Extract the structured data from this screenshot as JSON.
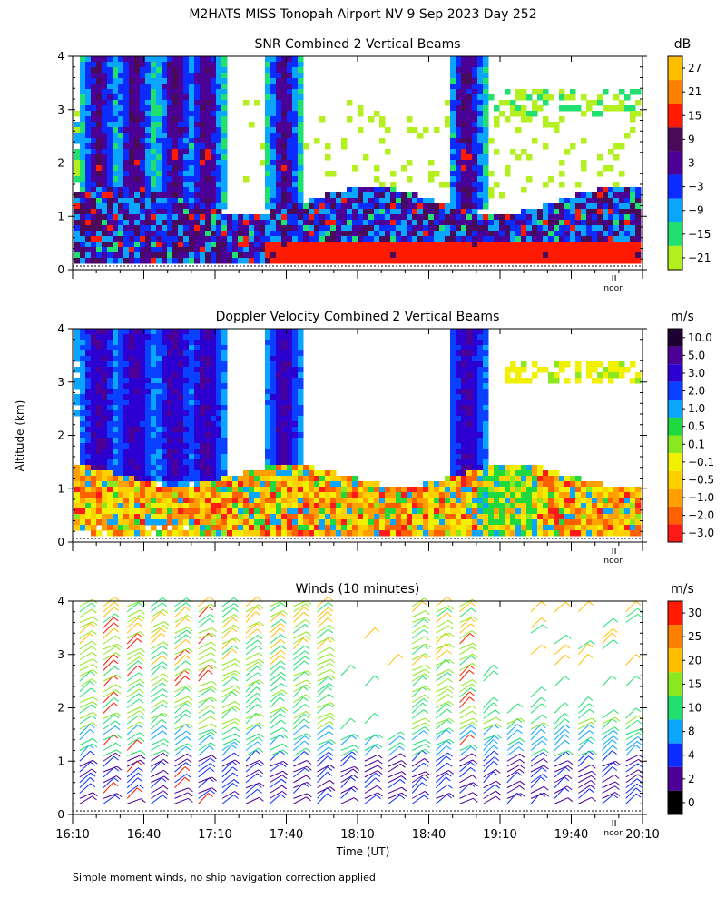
{
  "figure": {
    "title": "M2HATS MISS Tonopah Airport NV   9 Sep 2023 Day 252",
    "ylabel": "Altitude (km)",
    "xlabel": "Time (UT)",
    "footnote": "Simple moment winds, no ship navigation correction applied",
    "noon_label": "noon"
  },
  "chart_data": [
    {
      "type": "heatmap",
      "title": "SNR Combined 2 Vertical Beams",
      "units": "dB",
      "ylabel": "Altitude (km)",
      "y_range": [
        0,
        4
      ],
      "y_ticks": [
        0,
        1,
        2,
        3,
        4
      ],
      "x_range": [
        "16:10",
        "20:10"
      ],
      "colorbar": {
        "labels": [
          "27",
          "21",
          "15",
          "9",
          "3",
          "−3",
          "−9",
          "−15",
          "−21"
        ],
        "colors": [
          "#ffbf00",
          "#ff7f00",
          "#ff1a00",
          "#4a0a5a",
          "#4b0096",
          "#0a2cff",
          "#0aa5ff",
          "#20e070",
          "#b4f020"
        ]
      }
    },
    {
      "type": "heatmap",
      "title": "Doppler Velocity Combined 2 Vertical Beams",
      "units": "m/s",
      "ylabel": "Altitude (km)",
      "y_range": [
        0,
        4
      ],
      "y_ticks": [
        0,
        1,
        2,
        3,
        4
      ],
      "x_range": [
        "16:10",
        "20:10"
      ],
      "colorbar": {
        "labels": [
          "10.0",
          "5.0",
          "3.0",
          "2.0",
          "1.0",
          "0.5",
          "0.1",
          "−0.1",
          "−0.5",
          "−1.0",
          "−2.0",
          "−3.0"
        ],
        "colors": [
          "#1e0032",
          "#4b0096",
          "#2b00d0",
          "#0a40ff",
          "#0aa5ff",
          "#20d840",
          "#8ce81e",
          "#f0f000",
          "#ffd000",
          "#ffa000",
          "#ff6000",
          "#ff1a1a"
        ]
      }
    },
    {
      "type": "scatter",
      "title": "Winds (10 minutes)",
      "units": "m/s",
      "ylabel": "Altitude (km)",
      "y_range": [
        0,
        4
      ],
      "y_ticks": [
        0,
        1,
        2,
        3,
        4
      ],
      "x_ticks": [
        "16:10",
        "16:40",
        "17:10",
        "17:40",
        "18:10",
        "18:40",
        "19:10",
        "19:40",
        "20:10"
      ],
      "x_range": [
        "16:10",
        "20:10"
      ],
      "colorbar": {
        "labels": [
          "30",
          "25",
          "20",
          "15",
          "10",
          "8",
          "4",
          "2",
          "0"
        ],
        "colors": [
          "#ff1a00",
          "#ff7f00",
          "#ffbf00",
          "#8ce81e",
          "#20e070",
          "#0aa5ff",
          "#0a2cff",
          "#4b0096",
          "#000000"
        ]
      }
    }
  ]
}
